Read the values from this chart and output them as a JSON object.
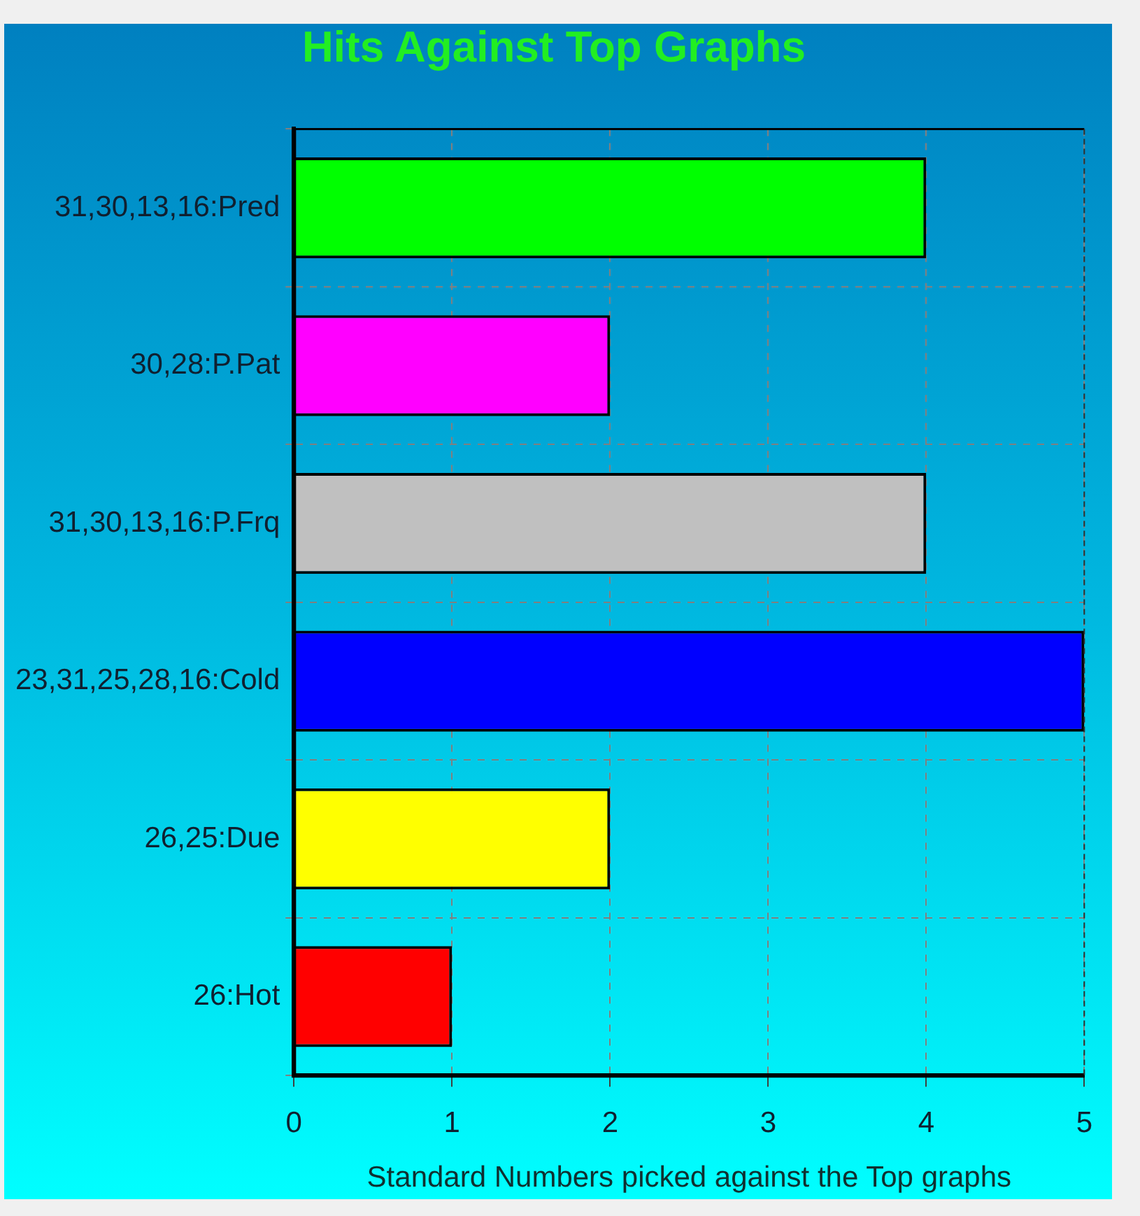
{
  "chart_data": {
    "type": "bar",
    "orientation": "horizontal",
    "title": "Hits Against Top Graphs",
    "xlabel": "Standard Numbers picked against the Top graphs",
    "categories": [
      "31,30,13,16:Pred",
      "30,28:P.Pat",
      "31,30,13,16:P.Frq",
      "23,31,25,28,16:Cold",
      "26,25:Due",
      "26:Hot"
    ],
    "values": [
      4,
      2,
      4,
      5,
      2,
      1
    ],
    "colors": [
      "#00ff00",
      "#ff00ff",
      "#c0c0c0",
      "#0000ff",
      "#ffff00",
      "#ff0000"
    ],
    "xlim": [
      0,
      5
    ],
    "xticks": [
      0,
      1,
      2,
      3,
      4,
      5
    ],
    "grid": true,
    "legend": false
  }
}
